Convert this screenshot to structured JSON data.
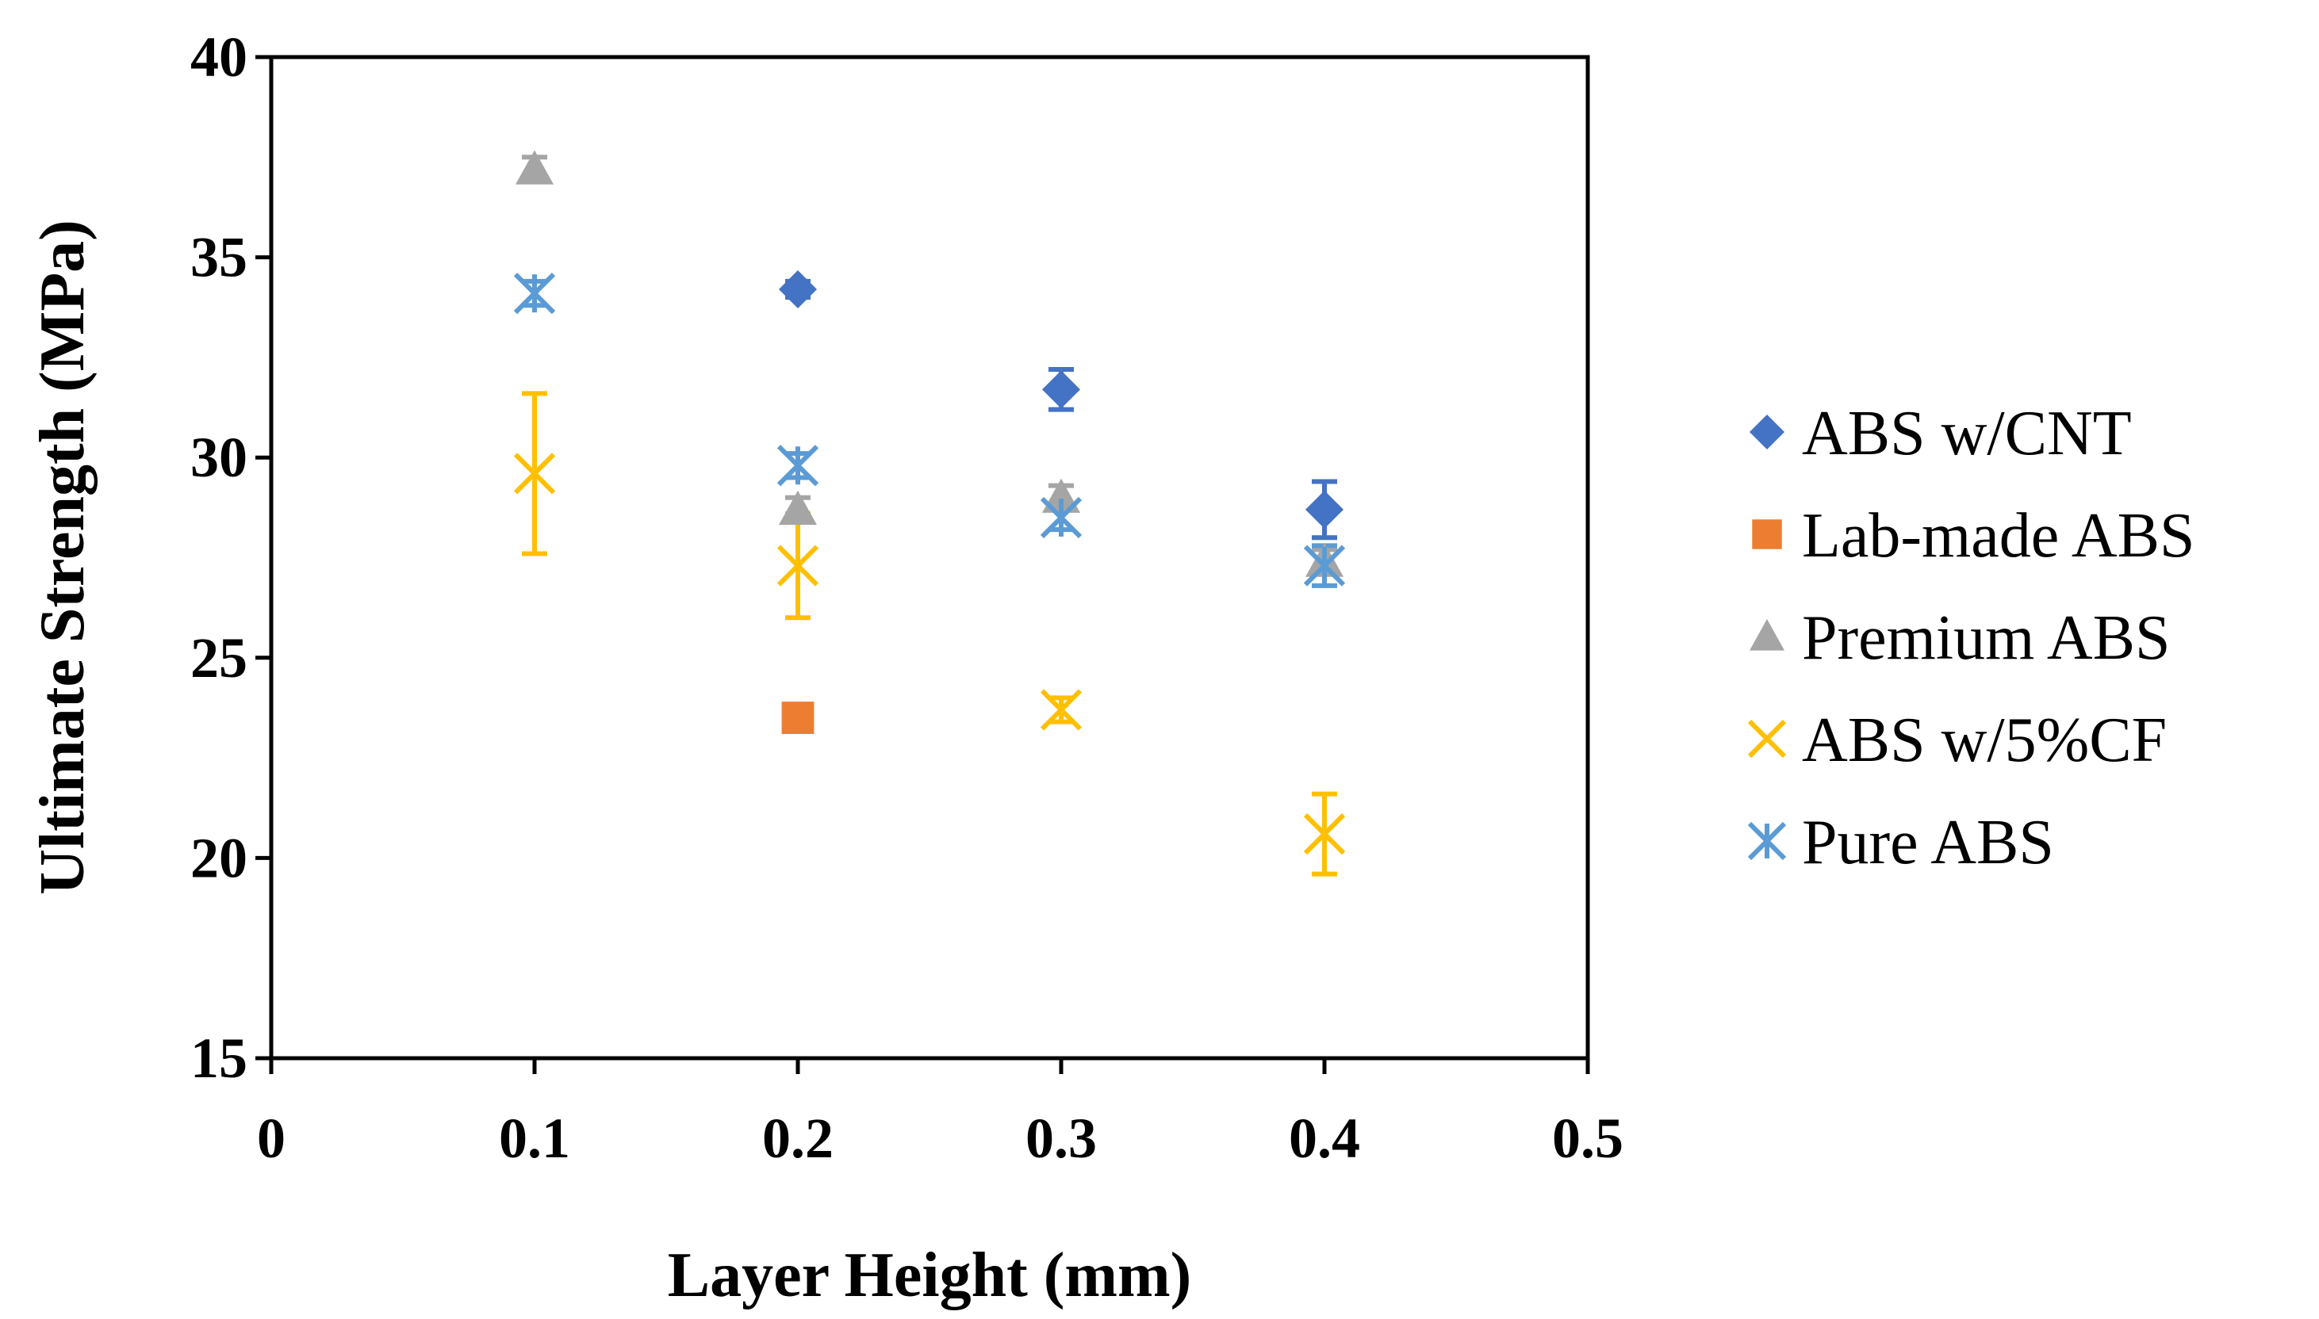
{
  "chart_data": {
    "type": "scatter",
    "xlabel": "Layer Height (mm)",
    "ylabel": "Ultimate Strength (MPa)",
    "xlim": [
      0,
      0.5
    ],
    "ylim": [
      15,
      40
    ],
    "x_ticks": [
      "0",
      "0.1",
      "0.2",
      "0.3",
      "0.4",
      "0.5"
    ],
    "y_ticks": [
      "15",
      "20",
      "25",
      "30",
      "35",
      "40"
    ],
    "legend_position": "right",
    "grid": false,
    "series": [
      {
        "name": "ABS w/CNT",
        "marker": "diamond",
        "color": "#4472C4",
        "points": [
          {
            "x": 0.2,
            "y": 34.2,
            "err": 0.2
          },
          {
            "x": 0.3,
            "y": 31.7,
            "err": 0.5
          },
          {
            "x": 0.4,
            "y": 28.7,
            "err": 0.7
          }
        ]
      },
      {
        "name": "Lab-made ABS",
        "marker": "square",
        "color": "#ED7D31",
        "points": [
          {
            "x": 0.2,
            "y": 23.5,
            "err": 0.3
          }
        ]
      },
      {
        "name": "Premium ABS",
        "marker": "triangle",
        "color": "#A5A5A5",
        "points": [
          {
            "x": 0.1,
            "y": 37.2,
            "err": 0.3
          },
          {
            "x": 0.2,
            "y": 28.7,
            "err": 0.3
          },
          {
            "x": 0.3,
            "y": 29.0,
            "err": 0.3
          },
          {
            "x": 0.4,
            "y": 27.4,
            "err": 0.3
          }
        ]
      },
      {
        "name": "ABS w/5%CF",
        "marker": "x",
        "color": "#FFC000",
        "points": [
          {
            "x": 0.1,
            "y": 29.6,
            "err": 2.0
          },
          {
            "x": 0.2,
            "y": 27.3,
            "err": 1.3
          },
          {
            "x": 0.3,
            "y": 23.7,
            "err": 0.3
          },
          {
            "x": 0.4,
            "y": 20.6,
            "err": 1.0
          }
        ]
      },
      {
        "name": "Pure ABS",
        "marker": "star",
        "color": "#5B9BD5",
        "points": [
          {
            "x": 0.1,
            "y": 34.1,
            "err": 0.3
          },
          {
            "x": 0.2,
            "y": 29.8,
            "err": 0.3
          },
          {
            "x": 0.3,
            "y": 28.5,
            "err": 0.3
          },
          {
            "x": 0.4,
            "y": 27.3,
            "err": 0.5
          }
        ]
      }
    ]
  }
}
